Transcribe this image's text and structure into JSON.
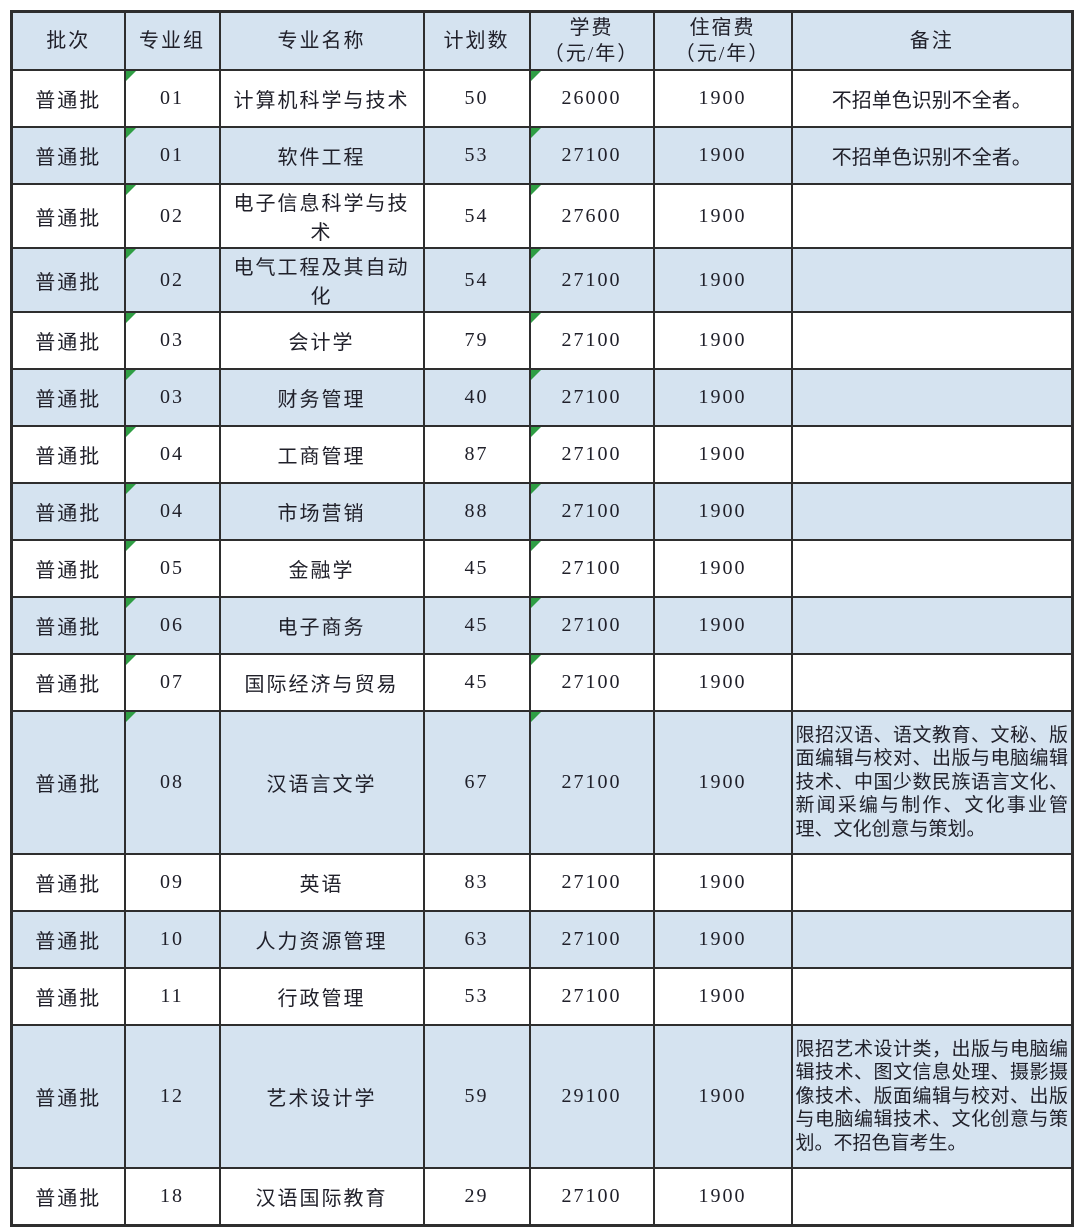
{
  "colors": {
    "row_alt": "#d5e3f0",
    "header_bg": "#d5e3f0",
    "row_bg": "#ffffff",
    "border": "#2e2e2e",
    "text": "#20202a",
    "triangle": "#2f9e44"
  },
  "table": {
    "columns": [
      {
        "label": "批次",
        "sub": ""
      },
      {
        "label": "专业组",
        "sub": ""
      },
      {
        "label": "专业名称",
        "sub": ""
      },
      {
        "label": "计划数",
        "sub": ""
      },
      {
        "label": "学费",
        "sub": "（元/年）"
      },
      {
        "label": "住宿费",
        "sub": "（元/年）"
      },
      {
        "label": "备注",
        "sub": ""
      }
    ],
    "rows": [
      {
        "batch": "普通批",
        "group": "01",
        "major": "计算机科学与技术",
        "plan": "50",
        "tuition": "26000",
        "accommodation": "1900",
        "remark": "不招单色识别不全者。",
        "triangles": true
      },
      {
        "batch": "普通批",
        "group": "01",
        "major": "软件工程",
        "plan": "53",
        "tuition": "27100",
        "accommodation": "1900",
        "remark": "不招单色识别不全者。",
        "triangles": true
      },
      {
        "batch": "普通批",
        "group": "02",
        "major": "电子信息科学与技术",
        "plan": "54",
        "tuition": "27600",
        "accommodation": "1900",
        "remark": "",
        "triangles": true
      },
      {
        "batch": "普通批",
        "group": "02",
        "major": "电气工程及其自动化",
        "plan": "54",
        "tuition": "27100",
        "accommodation": "1900",
        "remark": "",
        "triangles": true
      },
      {
        "batch": "普通批",
        "group": "03",
        "major": "会计学",
        "plan": "79",
        "tuition": "27100",
        "accommodation": "1900",
        "remark": "",
        "triangles": true
      },
      {
        "batch": "普通批",
        "group": "03",
        "major": "财务管理",
        "plan": "40",
        "tuition": "27100",
        "accommodation": "1900",
        "remark": "",
        "triangles": true
      },
      {
        "batch": "普通批",
        "group": "04",
        "major": "工商管理",
        "plan": "87",
        "tuition": "27100",
        "accommodation": "1900",
        "remark": "",
        "triangles": true
      },
      {
        "batch": "普通批",
        "group": "04",
        "major": "市场营销",
        "plan": "88",
        "tuition": "27100",
        "accommodation": "1900",
        "remark": "",
        "triangles": true
      },
      {
        "batch": "普通批",
        "group": "05",
        "major": "金融学",
        "plan": "45",
        "tuition": "27100",
        "accommodation": "1900",
        "remark": "",
        "triangles": true
      },
      {
        "batch": "普通批",
        "group": "06",
        "major": "电子商务",
        "plan": "45",
        "tuition": "27100",
        "accommodation": "1900",
        "remark": "",
        "triangles": true
      },
      {
        "batch": "普通批",
        "group": "07",
        "major": "国际经济与贸易",
        "plan": "45",
        "tuition": "27100",
        "accommodation": "1900",
        "remark": "",
        "triangles": true
      },
      {
        "batch": "普通批",
        "group": "08",
        "major": "汉语言文学",
        "plan": "67",
        "tuition": "27100",
        "accommodation": "1900",
        "remark": "限招汉语、语文教育、文秘、版面编辑与校对、出版与电脑编辑技术、中国少数民族语言文化、新闻采编与制作、文化事业管理、文化创意与策划。",
        "triangles": true
      },
      {
        "batch": "普通批",
        "group": "09",
        "major": "英语",
        "plan": "83",
        "tuition": "27100",
        "accommodation": "1900",
        "remark": "",
        "triangles": false
      },
      {
        "batch": "普通批",
        "group": "10",
        "major": "人力资源管理",
        "plan": "63",
        "tuition": "27100",
        "accommodation": "1900",
        "remark": "",
        "triangles": false
      },
      {
        "batch": "普通批",
        "group": "11",
        "major": "行政管理",
        "plan": "53",
        "tuition": "27100",
        "accommodation": "1900",
        "remark": "",
        "triangles": false
      },
      {
        "batch": "普通批",
        "group": "12",
        "major": "艺术设计学",
        "plan": "59",
        "tuition": "29100",
        "accommodation": "1900",
        "remark": "限招艺术设计类，出版与电脑编辑技术、图文信息处理、摄影摄像技术、版面编辑与校对、出版与电脑编辑技术、文化创意与策划。不招色盲考生。",
        "triangles": false
      },
      {
        "batch": "普通批",
        "group": "18",
        "major": "汉语国际教育",
        "plan": "29",
        "tuition": "27100",
        "accommodation": "1900",
        "remark": "",
        "triangles": false
      }
    ]
  }
}
